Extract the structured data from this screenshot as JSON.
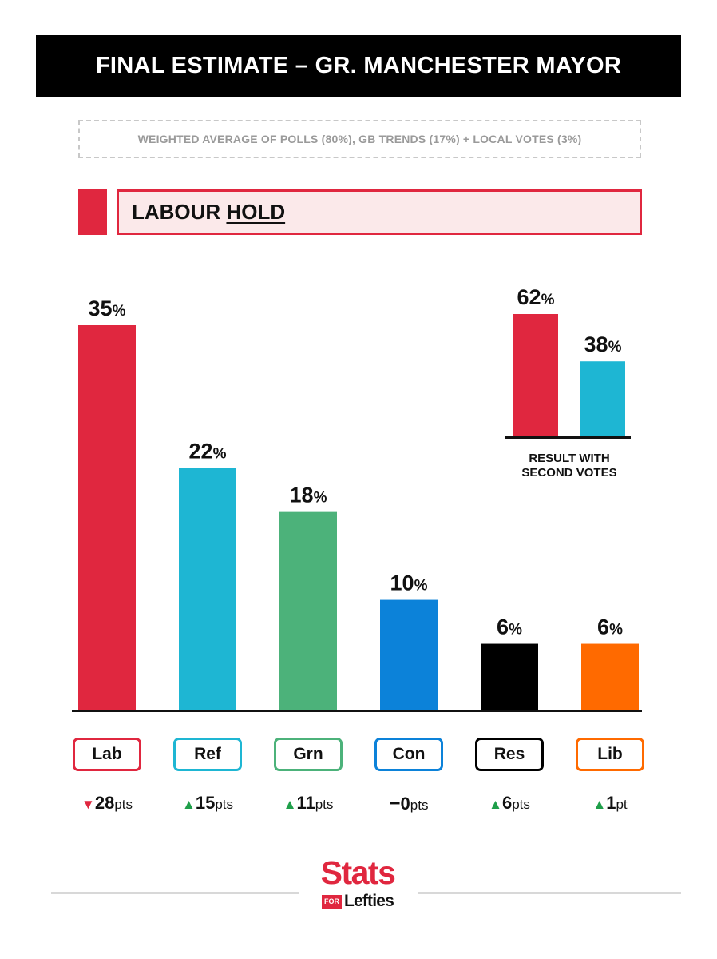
{
  "header": {
    "title": "FINAL ESTIMATE – GR. MANCHESTER MAYOR",
    "subtitle": "WEIGHTED AVERAGE OF POLLS (80%), GB TRENDS (17%) + LOCAL VOTES (3%)"
  },
  "verdict": {
    "party": "LABOUR",
    "result": "HOLD"
  },
  "colors": {
    "lab": "#E0273F",
    "ref": "#1EB6D3",
    "grn": "#4CB27A",
    "con": "#0C82D9",
    "res": "#000000",
    "lib": "#FF6A00",
    "up": "#1F9F4A",
    "down": "#E0273F",
    "verdict_fill": "#FBE9EA"
  },
  "chart_data": [
    {
      "type": "bar",
      "categories": [
        "Lab",
        "Ref",
        "Grn",
        "Con",
        "Res",
        "Lib"
      ],
      "values": [
        35,
        22,
        18,
        10,
        6,
        6
      ],
      "value_suffix": "%",
      "colors": [
        "#E0273F",
        "#1EB6D3",
        "#4CB27A",
        "#0C82D9",
        "#000000",
        "#FF6A00"
      ],
      "changes": [
        {
          "direction": "down",
          "symbol": "▼",
          "value": "28",
          "unit": "pts"
        },
        {
          "direction": "up",
          "symbol": "▲",
          "value": "15",
          "unit": "pts"
        },
        {
          "direction": "up",
          "symbol": "▲",
          "value": "11",
          "unit": "pts"
        },
        {
          "direction": "none",
          "symbol": "−",
          "value": "0",
          "unit": "pts"
        },
        {
          "direction": "up",
          "symbol": "▲",
          "value": "6",
          "unit": "pts"
        },
        {
          "direction": "up",
          "symbol": "▲",
          "value": "1",
          "unit": "pt"
        }
      ],
      "ylim": [
        0,
        35
      ],
      "grid": false,
      "legend": "none"
    },
    {
      "type": "bar",
      "categories": [
        "Lab",
        "Ref"
      ],
      "values": [
        62,
        38
      ],
      "value_suffix": "%",
      "colors": [
        "#E0273F",
        "#1EB6D3"
      ],
      "xlabel": [
        "RESULT WITH",
        "SECOND VOTES"
      ],
      "ylim": [
        0,
        62
      ],
      "grid": false,
      "legend": "none"
    }
  ],
  "logo": {
    "top": "Stats",
    "tag": "FOR",
    "bottom": "Lefties"
  }
}
